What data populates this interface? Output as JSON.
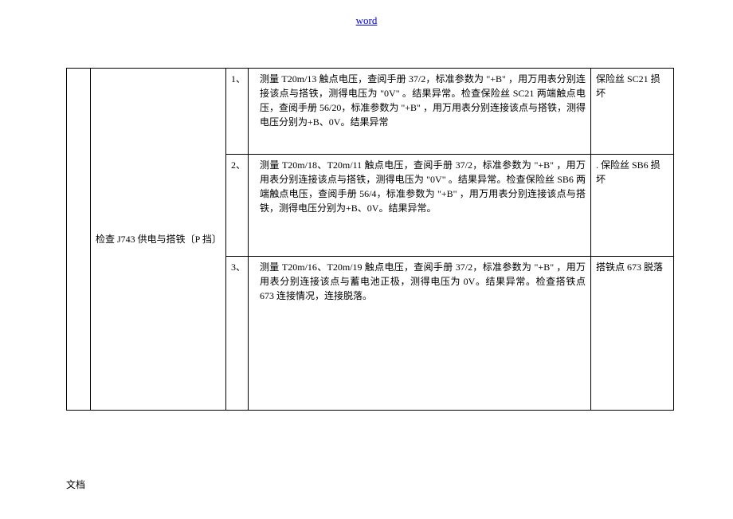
{
  "header": {
    "link_text": "word"
  },
  "table": {
    "step": "检查 J743 供电与搭铁〔P 挡〕",
    "rows": [
      {
        "num": "1、",
        "detail": "测量 T20m/13 触点电压，查阅手册 37/2，标准参数为 \"+B\" ，用万用表分别连接该点与搭铁，测得电压为 \"0V\" 。结果异常。检查保险丝 SC21 两端触点电压，查阅手册 56/20，标准参数为 \"+B\" ，用万用表分别连接该点与搭铁，测得电压分别为+B、0V。结果异常",
        "result": "保险丝 SC21 损坏"
      },
      {
        "num": "2、",
        "detail": "测量 T20m/18、T20m/11 触点电压，查阅手册 37/2，标准参数为 \"+B\" ，用万用表分别连接该点与搭铁，测得电压为 \"0V\" 。结果异常。检查保险丝 SB6 两端触点电压，查阅手册 56/4，标准参数为 \"+B\" ，用万用表分别连接该点与搭铁，测得电压分别为+B、0V。结果异常。",
        "result": ". 保险丝 SB6 损坏"
      },
      {
        "num": "3、",
        "detail": "测量 T20m/16、T20m/19 触点电压，查阅手册 37/2，标准参数为 \"+B\" ，用万用表分别连接该点与蓄电池正极，测得电压为 0V。结果异常。检查搭铁点 673 连接情况，连接脱落。",
        "result": "搭铁点 673 脱落"
      }
    ],
    "row_heights": [
      "108px",
      "128px",
      "193px"
    ]
  },
  "footer": {
    "text": "文档"
  }
}
